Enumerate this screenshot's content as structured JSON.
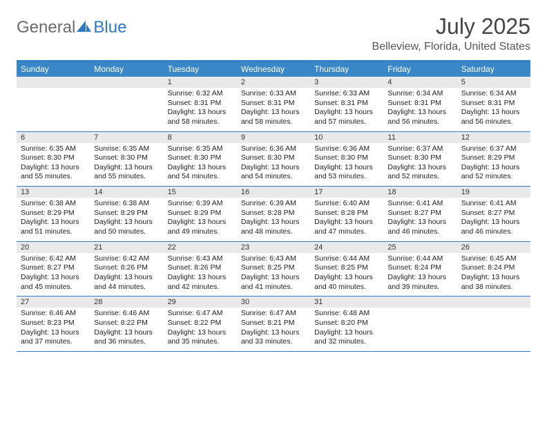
{
  "logo": {
    "part1": "General",
    "part2": "Blue"
  },
  "title": "July 2025",
  "location": "Belleview, Florida, United States",
  "colors": {
    "header_bar": "#3a87c8",
    "rule": "#2f79c2",
    "daynum_bg": "#e9e9e9",
    "text": "#222222",
    "logo_gray": "#6b6b6b",
    "logo_blue": "#2f79c2",
    "title_color": "#444444"
  },
  "dow": [
    "Sunday",
    "Monday",
    "Tuesday",
    "Wednesday",
    "Thursday",
    "Friday",
    "Saturday"
  ],
  "weeks": [
    [
      {
        "n": "",
        "sr": "",
        "ss": "",
        "dl": ""
      },
      {
        "n": "",
        "sr": "",
        "ss": "",
        "dl": ""
      },
      {
        "n": "1",
        "sr": "Sunrise: 6:32 AM",
        "ss": "Sunset: 8:31 PM",
        "dl": "Daylight: 13 hours and 58 minutes."
      },
      {
        "n": "2",
        "sr": "Sunrise: 6:33 AM",
        "ss": "Sunset: 8:31 PM",
        "dl": "Daylight: 13 hours and 58 minutes."
      },
      {
        "n": "3",
        "sr": "Sunrise: 6:33 AM",
        "ss": "Sunset: 8:31 PM",
        "dl": "Daylight: 13 hours and 57 minutes."
      },
      {
        "n": "4",
        "sr": "Sunrise: 6:34 AM",
        "ss": "Sunset: 8:31 PM",
        "dl": "Daylight: 13 hours and 56 minutes."
      },
      {
        "n": "5",
        "sr": "Sunrise: 6:34 AM",
        "ss": "Sunset: 8:31 PM",
        "dl": "Daylight: 13 hours and 56 minutes."
      }
    ],
    [
      {
        "n": "6",
        "sr": "Sunrise: 6:35 AM",
        "ss": "Sunset: 8:30 PM",
        "dl": "Daylight: 13 hours and 55 minutes."
      },
      {
        "n": "7",
        "sr": "Sunrise: 6:35 AM",
        "ss": "Sunset: 8:30 PM",
        "dl": "Daylight: 13 hours and 55 minutes."
      },
      {
        "n": "8",
        "sr": "Sunrise: 6:35 AM",
        "ss": "Sunset: 8:30 PM",
        "dl": "Daylight: 13 hours and 54 minutes."
      },
      {
        "n": "9",
        "sr": "Sunrise: 6:36 AM",
        "ss": "Sunset: 8:30 PM",
        "dl": "Daylight: 13 hours and 54 minutes."
      },
      {
        "n": "10",
        "sr": "Sunrise: 6:36 AM",
        "ss": "Sunset: 8:30 PM",
        "dl": "Daylight: 13 hours and 53 minutes."
      },
      {
        "n": "11",
        "sr": "Sunrise: 6:37 AM",
        "ss": "Sunset: 8:30 PM",
        "dl": "Daylight: 13 hours and 52 minutes."
      },
      {
        "n": "12",
        "sr": "Sunrise: 6:37 AM",
        "ss": "Sunset: 8:29 PM",
        "dl": "Daylight: 13 hours and 52 minutes."
      }
    ],
    [
      {
        "n": "13",
        "sr": "Sunrise: 6:38 AM",
        "ss": "Sunset: 8:29 PM",
        "dl": "Daylight: 13 hours and 51 minutes."
      },
      {
        "n": "14",
        "sr": "Sunrise: 6:38 AM",
        "ss": "Sunset: 8:29 PM",
        "dl": "Daylight: 13 hours and 50 minutes."
      },
      {
        "n": "15",
        "sr": "Sunrise: 6:39 AM",
        "ss": "Sunset: 8:29 PM",
        "dl": "Daylight: 13 hours and 49 minutes."
      },
      {
        "n": "16",
        "sr": "Sunrise: 6:39 AM",
        "ss": "Sunset: 8:28 PM",
        "dl": "Daylight: 13 hours and 48 minutes."
      },
      {
        "n": "17",
        "sr": "Sunrise: 6:40 AM",
        "ss": "Sunset: 8:28 PM",
        "dl": "Daylight: 13 hours and 47 minutes."
      },
      {
        "n": "18",
        "sr": "Sunrise: 6:41 AM",
        "ss": "Sunset: 8:27 PM",
        "dl": "Daylight: 13 hours and 46 minutes."
      },
      {
        "n": "19",
        "sr": "Sunrise: 6:41 AM",
        "ss": "Sunset: 8:27 PM",
        "dl": "Daylight: 13 hours and 46 minutes."
      }
    ],
    [
      {
        "n": "20",
        "sr": "Sunrise: 6:42 AM",
        "ss": "Sunset: 8:27 PM",
        "dl": "Daylight: 13 hours and 45 minutes."
      },
      {
        "n": "21",
        "sr": "Sunrise: 6:42 AM",
        "ss": "Sunset: 8:26 PM",
        "dl": "Daylight: 13 hours and 44 minutes."
      },
      {
        "n": "22",
        "sr": "Sunrise: 6:43 AM",
        "ss": "Sunset: 8:26 PM",
        "dl": "Daylight: 13 hours and 42 minutes."
      },
      {
        "n": "23",
        "sr": "Sunrise: 6:43 AM",
        "ss": "Sunset: 8:25 PM",
        "dl": "Daylight: 13 hours and 41 minutes."
      },
      {
        "n": "24",
        "sr": "Sunrise: 6:44 AM",
        "ss": "Sunset: 8:25 PM",
        "dl": "Daylight: 13 hours and 40 minutes."
      },
      {
        "n": "25",
        "sr": "Sunrise: 6:44 AM",
        "ss": "Sunset: 8:24 PM",
        "dl": "Daylight: 13 hours and 39 minutes."
      },
      {
        "n": "26",
        "sr": "Sunrise: 6:45 AM",
        "ss": "Sunset: 8:24 PM",
        "dl": "Daylight: 13 hours and 38 minutes."
      }
    ],
    [
      {
        "n": "27",
        "sr": "Sunrise: 6:46 AM",
        "ss": "Sunset: 8:23 PM",
        "dl": "Daylight: 13 hours and 37 minutes."
      },
      {
        "n": "28",
        "sr": "Sunrise: 6:46 AM",
        "ss": "Sunset: 8:22 PM",
        "dl": "Daylight: 13 hours and 36 minutes."
      },
      {
        "n": "29",
        "sr": "Sunrise: 6:47 AM",
        "ss": "Sunset: 8:22 PM",
        "dl": "Daylight: 13 hours and 35 minutes."
      },
      {
        "n": "30",
        "sr": "Sunrise: 6:47 AM",
        "ss": "Sunset: 8:21 PM",
        "dl": "Daylight: 13 hours and 33 minutes."
      },
      {
        "n": "31",
        "sr": "Sunrise: 6:48 AM",
        "ss": "Sunset: 8:20 PM",
        "dl": "Daylight: 13 hours and 32 minutes."
      },
      {
        "n": "",
        "sr": "",
        "ss": "",
        "dl": ""
      },
      {
        "n": "",
        "sr": "",
        "ss": "",
        "dl": ""
      }
    ]
  ]
}
